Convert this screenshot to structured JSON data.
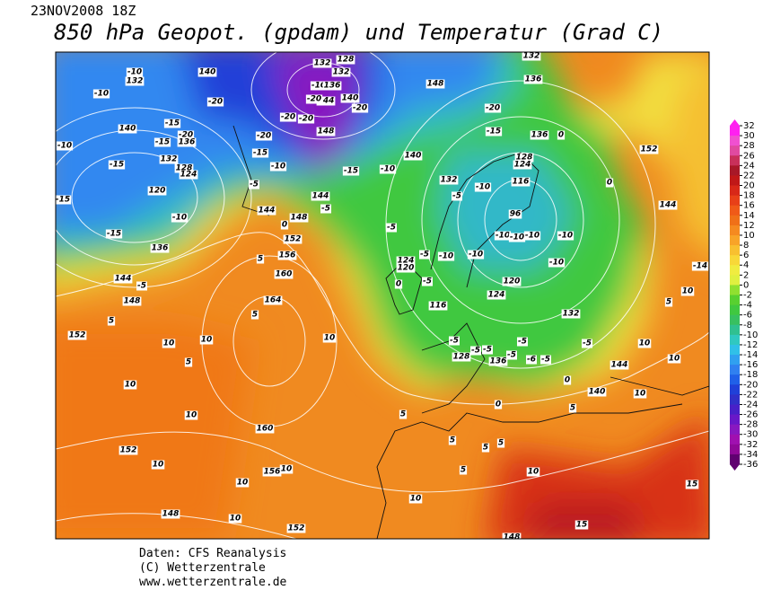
{
  "header": {
    "date": "23NOV2008 18Z",
    "title": "850 hPa Geopot. (gpdam) und  Temperatur (Grad C)"
  },
  "footer": {
    "source": "Daten: CFS Reanalysis",
    "copyright": "(C) Wetterzentrale",
    "url": "www.wetterzentrale.de"
  },
  "colorbar": {
    "ticks": [
      32,
      30,
      28,
      26,
      24,
      22,
      20,
      18,
      16,
      14,
      12,
      10,
      8,
      6,
      4,
      2,
      0,
      -2,
      -4,
      -6,
      -8,
      -10,
      -12,
      -14,
      -16,
      -18,
      -20,
      -22,
      -24,
      -26,
      -28,
      -30,
      -32,
      -34,
      -36
    ],
    "colors": [
      "#ff20f0",
      "#f050d0",
      "#e04aa0",
      "#c8305a",
      "#a81828",
      "#c01818",
      "#d82818",
      "#e84018",
      "#f05a18",
      "#f07018",
      "#f58a20",
      "#f8a428",
      "#f8c030",
      "#f8d838",
      "#f0ec40",
      "#e0f040",
      "#90e030",
      "#58d030",
      "#40c840",
      "#38c060",
      "#30c090",
      "#30c8c0",
      "#30c0e8",
      "#30a0f0",
      "#3080f0",
      "#2060e8",
      "#2040d8",
      "#3030c8",
      "#4820c8",
      "#6818c8",
      "#8818c0",
      "#a010b0",
      "#900898",
      "#600070"
    ]
  },
  "map": {
    "labels": [
      -10,
      132,
      -10,
      140,
      140,
      -10,
      -15,
      -20,
      -15,
      136,
      132,
      -15,
      128,
      124,
      120,
      -15,
      -10,
      -15,
      136,
      144,
      -5,
      148,
      5,
      152,
      10,
      10,
      5,
      10,
      10,
      152,
      10,
      10,
      156,
      10,
      148,
      10,
      152,
      -20,
      -20,
      144,
      148,
      -20,
      -15,
      -10,
      -5,
      144,
      -5,
      148,
      0,
      144,
      152,
      156,
      5,
      160,
      164,
      5,
      160,
      10,
      -15,
      -10,
      140,
      148,
      -5,
      124,
      120,
      0,
      -5,
      -5,
      116,
      -10,
      132,
      -5,
      -10,
      -15,
      -20,
      132,
      136,
      136,
      0,
      128,
      124,
      116,
      96,
      -10,
      -10,
      -10,
      -10,
      -10,
      -10,
      120,
      124,
      132,
      -5,
      128,
      -5,
      136,
      -5,
      -5,
      -5,
      -5,
      -6,
      -5,
      0,
      140,
      144,
      10,
      10,
      10,
      5,
      10,
      -14,
      144,
      152,
      0,
      5,
      5,
      5,
      5,
      5,
      10,
      5,
      0,
      10,
      15,
      15,
      148,
      -10,
      -20,
      -20,
      132,
      132,
      140,
      -20,
      128,
      136
    ]
  }
}
